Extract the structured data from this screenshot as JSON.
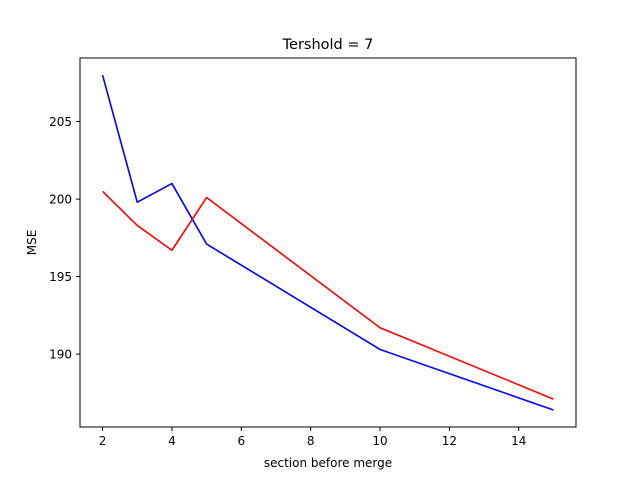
{
  "chart_data": {
    "type": "line",
    "title": "Tershold = 7",
    "xlabel": "section before merge",
    "ylabel": "MSE",
    "x": [
      2,
      3,
      4,
      5,
      10,
      15
    ],
    "series": [
      {
        "color": "#0000ff",
        "values": [
          208.0,
          199.8,
          201.0,
          197.1,
          190.3,
          186.4
        ]
      },
      {
        "color": "#ff0000",
        "values": [
          200.5,
          198.3,
          196.7,
          200.1,
          191.7,
          187.1
        ]
      }
    ],
    "xlim": [
      1.35,
      15.65
    ],
    "ylim": [
      185.3,
      209.1
    ],
    "xticks": [
      2,
      4,
      6,
      8,
      10,
      12,
      14
    ],
    "yticks": [
      190,
      195,
      200,
      205
    ],
    "grid": false,
    "legend": "none"
  }
}
